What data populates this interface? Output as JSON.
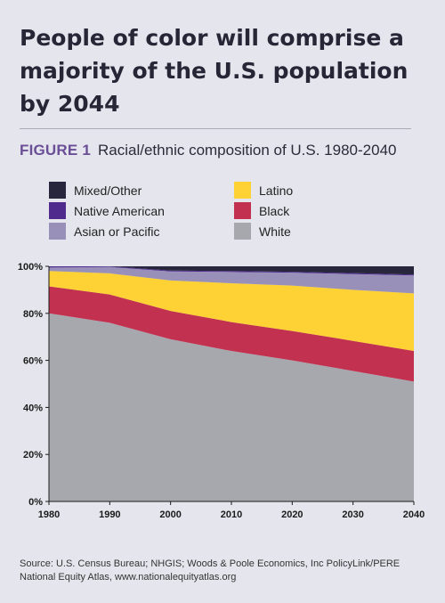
{
  "headline": "People of color will comprise a majority of the U.S. population by 2044",
  "figure": {
    "label": "FIGURE 1",
    "description": "Racial/ethnic composition of U.S. 1980-2040"
  },
  "legend": [
    {
      "name": "Mixed/Other",
      "color": "#27263d"
    },
    {
      "name": "Latino",
      "color": "#fed134"
    },
    {
      "name": "Native American",
      "color": "#4e2b8d"
    },
    {
      "name": "Black",
      "color": "#c23150"
    },
    {
      "name": "Asian or Pacific",
      "color": "#9990ba"
    },
    {
      "name": "White",
      "color": "#a7a8ad"
    }
  ],
  "chart_data": {
    "type": "area",
    "stacked": true,
    "x": [
      1980,
      1990,
      2000,
      2010,
      2020,
      2030,
      2040
    ],
    "ylim": [
      0,
      100
    ],
    "yticks": [
      "0%",
      "20%",
      "40%",
      "60%",
      "80%",
      "100%"
    ],
    "series": [
      {
        "name": "White",
        "color": "#a7a8ad",
        "values": [
          80,
          76,
          69,
          64,
          60,
          55.5,
          51
        ]
      },
      {
        "name": "Black",
        "color": "#c23150",
        "values": [
          11.5,
          12,
          12,
          12.3,
          12.5,
          12.8,
          13
        ]
      },
      {
        "name": "Latino",
        "color": "#fed134",
        "values": [
          6.5,
          9,
          13,
          16.5,
          19.3,
          21.7,
          24.5
        ]
      },
      {
        "name": "Asian or Pacific",
        "color": "#9990ba",
        "values": [
          1.5,
          2.7,
          3.8,
          4.8,
          5.5,
          6.7,
          7.6
        ]
      },
      {
        "name": "Native American",
        "color": "#4e2b8d",
        "values": [
          0.5,
          0.5,
          0.4,
          0.4,
          0.4,
          0.4,
          0.4
        ]
      },
      {
        "name": "Mixed/Other",
        "color": "#27263d",
        "values": [
          0,
          0,
          1.8,
          2,
          2.3,
          2.9,
          3.5
        ]
      }
    ],
    "grid": false
  },
  "source": "Source: U.S. Census Bureau; NHGIS; Woods & Poole Economics, Inc PolicyLink/PERE National Equity Atlas, www.nationalequityatlas.org"
}
